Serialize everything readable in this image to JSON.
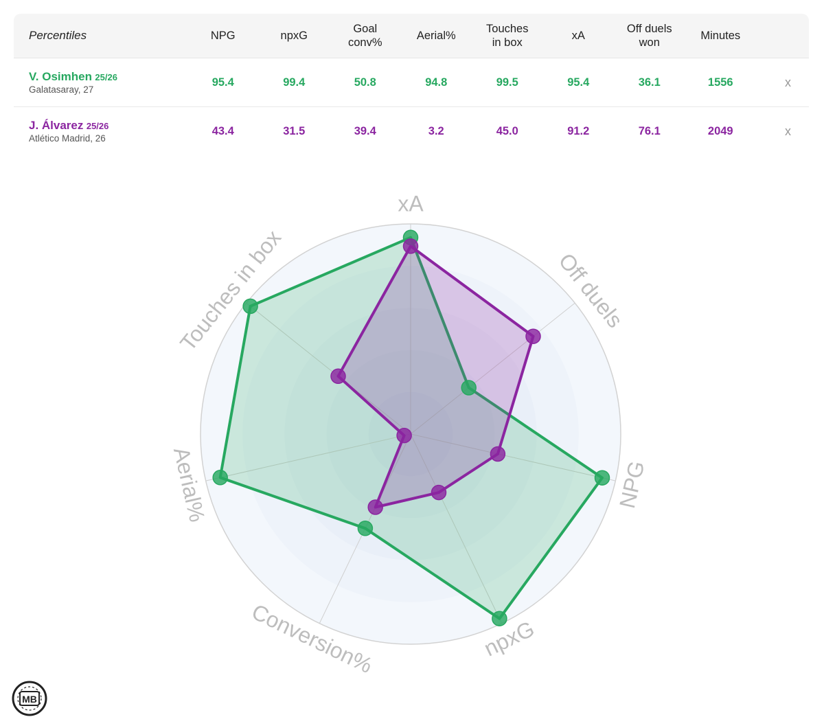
{
  "table": {
    "corner_label": "Percentiles",
    "columns": [
      {
        "line1": "NPG",
        "line2": ""
      },
      {
        "line1": "npxG",
        "line2": ""
      },
      {
        "line1": "Goal",
        "line2": "conv%"
      },
      {
        "line1": "Aerial%",
        "line2": ""
      },
      {
        "line1": "Touches",
        "line2": "in box"
      },
      {
        "line1": "xA",
        "line2": ""
      },
      {
        "line1": "Off duels",
        "line2": "won"
      },
      {
        "line1": "Minutes",
        "line2": ""
      }
    ],
    "players": [
      {
        "name": "V. Osimhen",
        "season": "25/26",
        "team_age": "Galatasaray, 27",
        "values": [
          "95.4",
          "99.4",
          "50.8",
          "94.8",
          "99.5",
          "95.4",
          "36.1",
          "1556"
        ],
        "remove": "x"
      },
      {
        "name": "J. Álvarez",
        "season": "25/26",
        "team_age": "Atlético Madrid, 26",
        "values": [
          "43.4",
          "31.5",
          "39.4",
          "3.2",
          "45.0",
          "91.2",
          "76.1",
          "2049"
        ],
        "remove": "x"
      }
    ]
  },
  "chart_data": {
    "type": "radar",
    "axes": [
      "xA",
      "Off duels",
      "NPG",
      "npxG",
      "Conversion%",
      "Aerial%",
      "Touches in box"
    ],
    "range": [
      0,
      100
    ],
    "series": [
      {
        "name": "V. Osimhen",
        "color": "#27a860",
        "values": [
          95.4,
          36.1,
          95.4,
          99.4,
          50.8,
          94.8,
          99.5
        ]
      },
      {
        "name": "J. Álvarez",
        "color": "#8b25a0",
        "values": [
          91.2,
          76.1,
          43.4,
          31.5,
          39.4,
          3.2,
          45.0
        ]
      }
    ]
  },
  "logo": {
    "text": "MB"
  }
}
